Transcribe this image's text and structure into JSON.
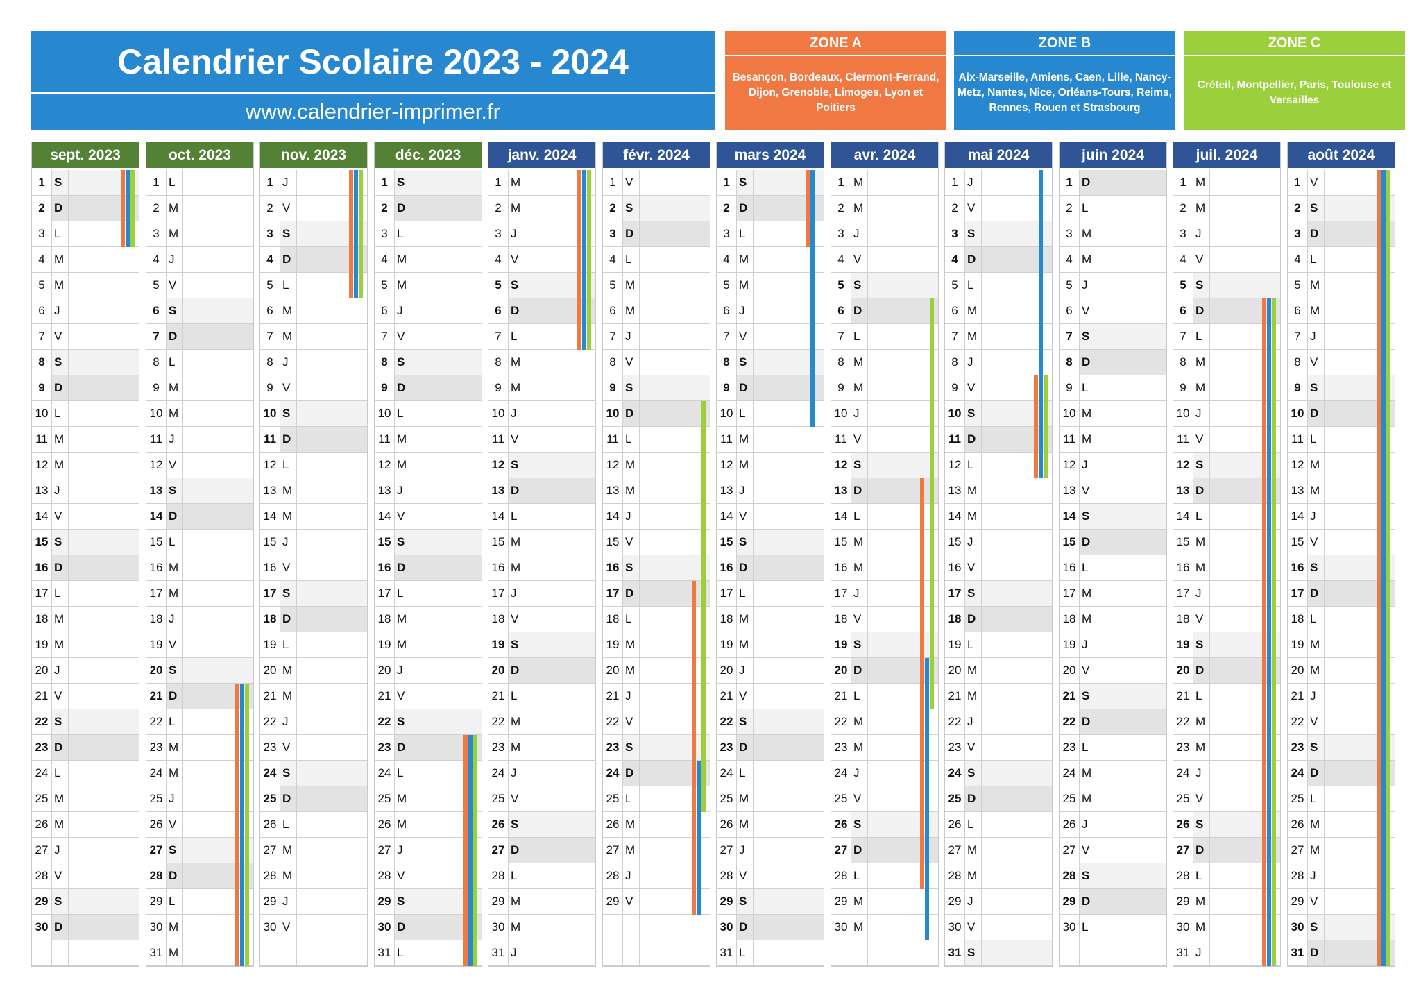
{
  "header": {
    "title": "Calendrier Scolaire 2023 - 2024",
    "website": "www.calendrier-imprimer.fr"
  },
  "zones": [
    {
      "name": "ZONE A",
      "cities": "Besançon, Bordeaux, Clermont-Ferrand, Dijon, Grenoble, Limoges, Lyon et Poitiers",
      "color": "#f07843"
    },
    {
      "name": "ZONE B",
      "cities": "Aix-Marseille, Amiens, Caen, Lille, Nancy-Metz, Nantes, Nice, Orléans-Tours, Reims, Rennes, Rouen et Strasbourg",
      "color": "#2787cf"
    },
    {
      "name": "ZONE C",
      "cities": "Créteil, Montpellier, Paris, Toulouse et Versailles",
      "color": "#9ccf3c"
    }
  ],
  "months": [
    {
      "label": "sept. 2023",
      "header_color": "green",
      "days": 30,
      "first_weekday": 5,
      "holidays": [
        {
          "zone": "A",
          "from": 1,
          "to": 3
        },
        {
          "zone": "B",
          "from": 1,
          "to": 3
        },
        {
          "zone": "C",
          "from": 1,
          "to": 3
        }
      ]
    },
    {
      "label": "oct. 2023",
      "header_color": "green",
      "days": 31,
      "first_weekday": 0,
      "holidays": [
        {
          "zone": "A",
          "from": 21,
          "to": 31
        },
        {
          "zone": "B",
          "from": 21,
          "to": 31
        },
        {
          "zone": "C",
          "from": 21,
          "to": 31
        }
      ]
    },
    {
      "label": "nov. 2023",
      "header_color": "green",
      "days": 30,
      "first_weekday": 3,
      "holidays": [
        {
          "zone": "A",
          "from": 1,
          "to": 5
        },
        {
          "zone": "B",
          "from": 1,
          "to": 5
        },
        {
          "zone": "C",
          "from": 1,
          "to": 5
        }
      ]
    },
    {
      "label": "déc. 2023",
      "header_color": "green",
      "days": 31,
      "first_weekday": 5,
      "holidays": [
        {
          "zone": "A",
          "from": 23,
          "to": 31
        },
        {
          "zone": "B",
          "from": 23,
          "to": 31
        },
        {
          "zone": "C",
          "from": 23,
          "to": 31
        }
      ]
    },
    {
      "label": "janv. 2024",
      "header_color": "blue",
      "days": 31,
      "first_weekday": 1,
      "holidays": [
        {
          "zone": "A",
          "from": 1,
          "to": 7
        },
        {
          "zone": "B",
          "from": 1,
          "to": 7
        },
        {
          "zone": "C",
          "from": 1,
          "to": 7
        }
      ]
    },
    {
      "label": "févr. 2024",
      "header_color": "blue",
      "days": 29,
      "first_weekday": 4,
      "holidays": [
        {
          "zone": "A",
          "from": 17,
          "to": 29
        },
        {
          "zone": "B",
          "from": 24,
          "to": 29
        },
        {
          "zone": "C",
          "from": 10,
          "to": 25
        }
      ]
    },
    {
      "label": "mars 2024",
      "header_color": "blue",
      "days": 31,
      "first_weekday": 5,
      "holidays": [
        {
          "zone": "A",
          "from": 1,
          "to": 3
        },
        {
          "zone": "B",
          "from": 1,
          "to": 10
        }
      ]
    },
    {
      "label": "avr. 2024",
      "header_color": "blue",
      "days": 30,
      "first_weekday": 1,
      "holidays": [
        {
          "zone": "A",
          "from": 13,
          "to": 28
        },
        {
          "zone": "B",
          "from": 20,
          "to": 30
        },
        {
          "zone": "C",
          "from": 6,
          "to": 21
        }
      ]
    },
    {
      "label": "mai 2024",
      "header_color": "blue",
      "days": 31,
      "first_weekday": 3,
      "holidays": [
        {
          "zone": "A",
          "from": 9,
          "to": 12
        },
        {
          "zone": "B",
          "from": 1,
          "to": 12
        },
        {
          "zone": "C",
          "from": 9,
          "to": 12
        }
      ]
    },
    {
      "label": "juin 2024",
      "header_color": "blue",
      "days": 30,
      "first_weekday": 6,
      "holidays": []
    },
    {
      "label": "juil. 2024",
      "header_color": "blue",
      "days": 31,
      "first_weekday": 1,
      "holidays": [
        {
          "zone": "A",
          "from": 6,
          "to": 31
        },
        {
          "zone": "B",
          "from": 6,
          "to": 31
        },
        {
          "zone": "C",
          "from": 6,
          "to": 31
        }
      ]
    },
    {
      "label": "août 2024",
      "header_color": "blue",
      "days": 31,
      "first_weekday": 4,
      "holidays": [
        {
          "zone": "A",
          "from": 1,
          "to": 31
        },
        {
          "zone": "B",
          "from": 1,
          "to": 31
        },
        {
          "zone": "C",
          "from": 1,
          "to": 31
        }
      ]
    }
  ],
  "weekday_letters": [
    "L",
    "M",
    "M",
    "J",
    "V",
    "S",
    "D"
  ],
  "colors": {
    "header_green": "#538135",
    "header_blue": "#2f5597",
    "saturday_bg": "#f2f2f2",
    "sunday_bg": "#e3e3e3"
  }
}
